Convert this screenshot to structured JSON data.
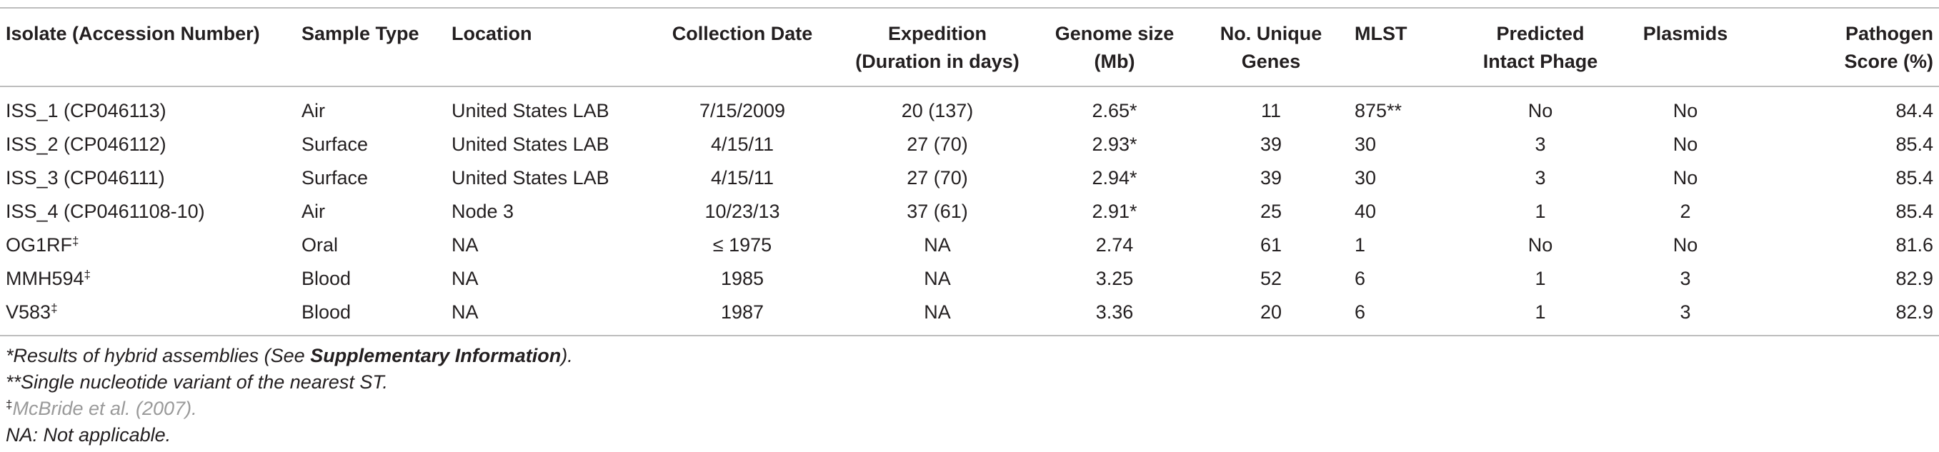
{
  "table": {
    "headers": [
      {
        "lines": [
          "Isolate (Accession Number)"
        ]
      },
      {
        "lines": [
          "Sample Type"
        ]
      },
      {
        "lines": [
          "Location"
        ]
      },
      {
        "lines": [
          "Collection Date"
        ]
      },
      {
        "lines": [
          "Expedition",
          "(Duration in days)"
        ]
      },
      {
        "lines": [
          "Genome size",
          "(Mb)"
        ]
      },
      {
        "lines": [
          "No. Unique",
          "Genes"
        ]
      },
      {
        "lines": [
          "MLST"
        ]
      },
      {
        "lines": [
          "Predicted",
          "Intact Phage"
        ]
      },
      {
        "lines": [
          "Plasmids"
        ]
      },
      {
        "lines": [
          "Pathogen",
          "Score (%)"
        ]
      }
    ],
    "rows": [
      {
        "isolate": "ISS_1 (CP046113)",
        "isolate_sup": "",
        "sample_type": "Air",
        "location": "United States LAB",
        "collection_date": "7/15/2009",
        "expedition": "20 (137)",
        "genome_size": "2.65*",
        "unique_genes": "11",
        "mlst": "875**",
        "phage": "No",
        "plasmids": "No",
        "pathogen_score": "84.4"
      },
      {
        "isolate": "ISS_2 (CP046112)",
        "isolate_sup": "",
        "sample_type": "Surface",
        "location": "United States LAB",
        "collection_date": "4/15/11",
        "expedition": "27 (70)",
        "genome_size": "2.93*",
        "unique_genes": "39",
        "mlst": "30",
        "phage": "3",
        "plasmids": "No",
        "pathogen_score": "85.4"
      },
      {
        "isolate": "ISS_3 (CP046111)",
        "isolate_sup": "",
        "sample_type": "Surface",
        "location": "United States LAB",
        "collection_date": "4/15/11",
        "expedition": "27 (70)",
        "genome_size": "2.94*",
        "unique_genes": "39",
        "mlst": "30",
        "phage": "3",
        "plasmids": "No",
        "pathogen_score": "85.4"
      },
      {
        "isolate": "ISS_4 (CP0461108-10)",
        "isolate_sup": "",
        "sample_type": "Air",
        "location": "Node 3",
        "collection_date": "10/23/13",
        "expedition": "37 (61)",
        "genome_size": "2.91*",
        "unique_genes": "25",
        "mlst": "40",
        "phage": "1",
        "plasmids": "2",
        "pathogen_score": "85.4"
      },
      {
        "isolate": "OG1RF",
        "isolate_sup": "‡",
        "sample_type": "Oral",
        "location": "NA",
        "collection_date": "≤ 1975",
        "expedition": "NA",
        "genome_size": "2.74",
        "unique_genes": "61",
        "mlst": "1",
        "phage": "No",
        "plasmids": "No",
        "pathogen_score": "81.6"
      },
      {
        "isolate": "MMH594",
        "isolate_sup": "‡",
        "sample_type": "Blood",
        "location": "NA",
        "collection_date": "1985",
        "expedition": "NA",
        "genome_size": "3.25",
        "unique_genes": "52",
        "mlst": "6",
        "phage": "1",
        "plasmids": "3",
        "pathogen_score": "82.9"
      },
      {
        "isolate": "V583",
        "isolate_sup": "‡",
        "sample_type": "Blood",
        "location": "NA",
        "collection_date": "1987",
        "expedition": "NA",
        "genome_size": "3.36",
        "unique_genes": "20",
        "mlst": "6",
        "phage": "1",
        "plasmids": "3",
        "pathogen_score": "82.9"
      }
    ]
  },
  "footnotes": {
    "hybrid_prefix": "*Results of hybrid assemblies (See ",
    "hybrid_bold": "Supplementary Information",
    "hybrid_suffix": ").",
    "snv": "**Single nucleotide variant of the nearest ST.",
    "ref_symbol": "‡",
    "ref_text": "McBride et al. (2007).",
    "na": "NA: Not applicable."
  }
}
